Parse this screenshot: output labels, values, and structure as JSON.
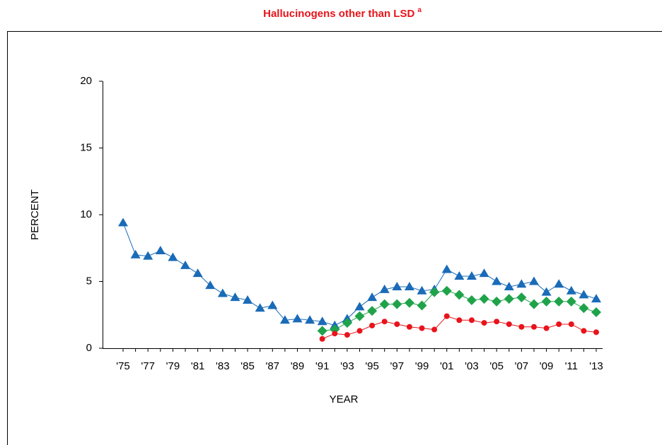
{
  "chart_data": {
    "type": "line",
    "title": "Hallucinogens other than LSD",
    "title_superscript": "a",
    "x_label": "YEAR",
    "y_label": "PERCENT",
    "categories": [
      "'75",
      null,
      "'77",
      null,
      "'79",
      null,
      "'81",
      null,
      "'83",
      null,
      "'85",
      null,
      "'87",
      null,
      "'89",
      null,
      "'91",
      null,
      "'93",
      null,
      "'95",
      null,
      "'97",
      null,
      "'99",
      null,
      "'01",
      null,
      "'03",
      null,
      "'05",
      null,
      "'07",
      null,
      "'09",
      null,
      "'11",
      null,
      "'13"
    ],
    "ylim": [
      0,
      20
    ],
    "yticks": [
      0,
      5,
      10,
      15,
      20
    ],
    "series": [
      {
        "color": "#1a6bb8",
        "marker": "triangle",
        "values": [
          9.4,
          7.0,
          6.9,
          7.3,
          6.8,
          6.2,
          5.6,
          4.7,
          4.1,
          3.8,
          3.6,
          3.0,
          3.2,
          2.1,
          2.2,
          2.1,
          2.0,
          1.7,
          2.2,
          3.1,
          3.8,
          4.4,
          4.6,
          4.6,
          4.3,
          4.4,
          5.9,
          5.4,
          5.4,
          5.6,
          5.0,
          4.6,
          4.8,
          5.0,
          4.2,
          4.8,
          4.3,
          4.0,
          3.7
        ]
      },
      {
        "color": "#1fa34a",
        "marker": "diamond",
        "values": [
          null,
          null,
          null,
          null,
          null,
          null,
          null,
          null,
          null,
          null,
          null,
          null,
          null,
          null,
          null,
          null,
          1.3,
          1.4,
          1.9,
          2.4,
          2.8,
          3.3,
          3.3,
          3.4,
          3.2,
          4.2,
          4.3,
          4.0,
          3.6,
          3.7,
          3.5,
          3.7,
          3.8,
          3.3,
          3.5,
          3.5,
          3.5,
          3.0,
          2.7
        ]
      },
      {
        "color": "#e8141b",
        "marker": "circle",
        "values": [
          null,
          null,
          null,
          null,
          null,
          null,
          null,
          null,
          null,
          null,
          null,
          null,
          null,
          null,
          null,
          null,
          0.7,
          1.1,
          1.0,
          1.3,
          1.7,
          2.0,
          1.8,
          1.6,
          1.5,
          1.4,
          2.4,
          2.1,
          2.1,
          1.9,
          2.0,
          1.8,
          1.6,
          1.6,
          1.5,
          1.8,
          1.8,
          1.3,
          1.2
        ]
      }
    ]
  }
}
